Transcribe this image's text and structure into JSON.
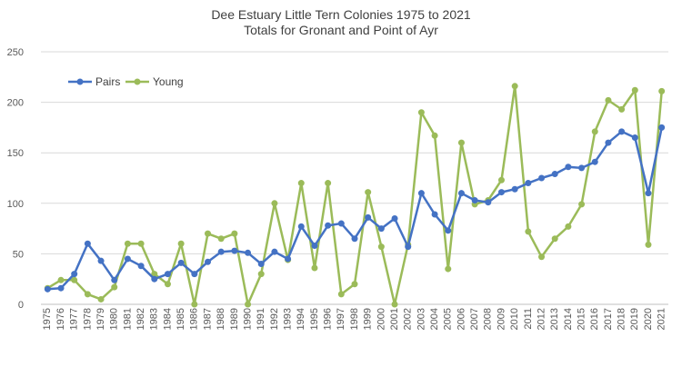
{
  "chart_data": {
    "type": "line",
    "title": "Dee Estuary Little Tern Colonies 1975 to 2021",
    "subtitle": "Totals for Gronant and Point of Ayr",
    "xlabel": "",
    "ylabel": "",
    "ylim": [
      0,
      250
    ],
    "yticks": [
      "0",
      "50",
      "100",
      "150",
      "200",
      "250"
    ],
    "grid": true,
    "legend_position": "top-left",
    "categories": [
      "1975",
      "1976",
      "1977",
      "1978",
      "1979",
      "1980",
      "1981",
      "1982",
      "1983",
      "1984",
      "1985",
      "1986",
      "1987",
      "1988",
      "1989",
      "1990",
      "1991",
      "1992",
      "1993",
      "1994",
      "1995",
      "1996",
      "1997",
      "1998",
      "1999",
      "2000",
      "2001",
      "2002",
      "2003",
      "2004",
      "2005",
      "2006",
      "2007",
      "2008",
      "2009",
      "2010",
      "2011",
      "2012",
      "2013",
      "2014",
      "2015",
      "2016",
      "2017",
      "2018",
      "2019",
      "2020",
      "2021"
    ],
    "series": [
      {
        "name": "Pairs",
        "color": "#4472C4",
        "values": [
          15,
          16,
          30,
          60,
          43,
          24,
          45,
          38,
          25,
          30,
          41,
          30,
          42,
          52,
          53,
          51,
          40,
          52,
          45,
          77,
          58,
          78,
          80,
          65,
          86,
          75,
          85,
          57,
          110,
          89,
          73,
          110,
          103,
          101,
          111,
          114,
          120,
          125,
          129,
          136,
          135,
          141,
          160,
          171,
          165,
          110,
          175
        ]
      },
      {
        "name": "Young",
        "color": "#9BBB59",
        "values": [
          16,
          24,
          24,
          10,
          5,
          17,
          60,
          60,
          30,
          20,
          60,
          0,
          70,
          65,
          70,
          0,
          30,
          100,
          44,
          120,
          36,
          120,
          10,
          20,
          111,
          57,
          0,
          59,
          190,
          167,
          35,
          160,
          99,
          103,
          123,
          216,
          72,
          47,
          65,
          77,
          99,
          171,
          202,
          193,
          212,
          59,
          211
        ]
      }
    ]
  }
}
